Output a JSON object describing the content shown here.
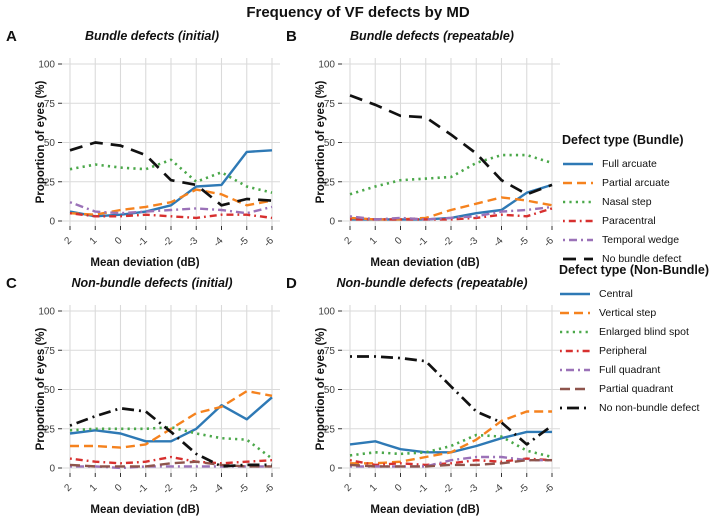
{
  "title": "Frequency of VF defects by MD",
  "background": "#ffffff",
  "styles": {
    "full_arcuate": {
      "color": "#2E79B5",
      "dash": null,
      "width": 2.4
    },
    "partial_arcuate": {
      "color": "#F5821E",
      "dash": "9 5",
      "width": 2.4
    },
    "nasal_step": {
      "color": "#4BA84A",
      "dash": "2.2 4.2",
      "width": 2.6
    },
    "paracentral": {
      "color": "#D7302F",
      "dash": "1.8 4 7 4",
      "width": 2.4
    },
    "temporal_wedge": {
      "color": "#9B72B8",
      "dash": "2 4 8 4",
      "width": 2.4
    },
    "no_bundle_defect": {
      "color": "#111111",
      "dash": "13 8",
      "width": 2.7
    },
    "central": {
      "color": "#2E79B5",
      "dash": null,
      "width": 2.4
    },
    "vertical_step": {
      "color": "#F5821E",
      "dash": "9 5",
      "width": 2.4
    },
    "enlarged_blind_spot": {
      "color": "#4BA84A",
      "dash": "2.2 4.2",
      "width": 2.6
    },
    "peripheral": {
      "color": "#D7302F",
      "dash": "1.8 4 7 4",
      "width": 2.4
    },
    "full_quadrant": {
      "color": "#9B72B8",
      "dash": "2 4 8 4",
      "width": 2.4
    },
    "partial_quadrant": {
      "color": "#8E544C",
      "dash": "10 5",
      "width": 2.4
    },
    "no_nonbundle_defect": {
      "color": "#111111",
      "dash": "2 5 12 5",
      "width": 2.7
    }
  },
  "grid_color": "#DADADA",
  "tick_text_color": "#404040",
  "legends": [
    {
      "title": "Defect type (Bundle)",
      "items": [
        {
          "label": "Full arcuate",
          "style": "full_arcuate"
        },
        {
          "label": "Partial arcuate",
          "style": "partial_arcuate"
        },
        {
          "label": "Nasal step",
          "style": "nasal_step"
        },
        {
          "label": "Paracentral",
          "style": "paracentral"
        },
        {
          "label": "Temporal wedge",
          "style": "temporal_wedge"
        },
        {
          "label": "No bundle defect",
          "style": "no_bundle_defect"
        }
      ]
    },
    {
      "title": "Defect type (Non-Bundle)",
      "items": [
        {
          "label": "Central",
          "style": "central"
        },
        {
          "label": "Vertical step",
          "style": "vertical_step"
        },
        {
          "label": "Enlarged blind spot",
          "style": "enlarged_blind_spot"
        },
        {
          "label": "Peripheral",
          "style": "peripheral"
        },
        {
          "label": "Full quadrant",
          "style": "full_quadrant"
        },
        {
          "label": "Partial quadrant",
          "style": "partial_quadrant"
        },
        {
          "label": "No non-bundle defect",
          "style": "no_nonbundle_defect"
        }
      ]
    }
  ],
  "chart_data": [
    {
      "type": "line",
      "panel": "A",
      "title": "Bundle defects (initial)",
      "xlabel": "Mean deviation (dB)",
      "ylabel": "Proportion of eyes (%)",
      "x": [
        2,
        1,
        0,
        -1,
        -2,
        -3,
        -4,
        -5,
        -6
      ],
      "x_tick_labels": [
        "2",
        "1",
        "0",
        "-1",
        "-2",
        "-3",
        "-4",
        "-5",
        "-6"
      ],
      "ylim": [
        0,
        100
      ],
      "yticks": [
        0,
        25,
        50,
        75,
        100
      ],
      "grid": true,
      "legend": "Defect type (Bundle)",
      "series": [
        {
          "name": "Full arcuate",
          "style": "full_arcuate",
          "values": [
            6,
            3,
            4,
            6,
            10,
            22,
            23,
            44,
            45
          ]
        },
        {
          "name": "Partial arcuate",
          "style": "partial_arcuate",
          "values": [
            5,
            4,
            7,
            9,
            12,
            20,
            17,
            10,
            13
          ]
        },
        {
          "name": "Nasal step",
          "style": "nasal_step",
          "values": [
            33,
            36,
            34,
            33,
            39,
            25,
            31,
            22,
            18
          ]
        },
        {
          "name": "Paracentral",
          "style": "paracentral",
          "values": [
            5,
            3,
            3,
            4,
            3,
            2,
            4,
            4,
            2
          ]
        },
        {
          "name": "Temporal wedge",
          "style": "temporal_wedge",
          "values": [
            12,
            6,
            5,
            6,
            7,
            8,
            7,
            5,
            9
          ]
        },
        {
          "name": "No bundle defect",
          "style": "no_bundle_defect",
          "values": [
            45,
            50,
            48,
            42,
            26,
            23,
            10,
            14,
            13
          ]
        }
      ]
    },
    {
      "type": "line",
      "panel": "B",
      "title": "Bundle defects (repeatable)",
      "xlabel": "Mean deviation (dB)",
      "ylabel": "Proportion of eyes (%)",
      "x": [
        2,
        1,
        0,
        -1,
        -2,
        -3,
        -4,
        -5,
        -6
      ],
      "x_tick_labels": [
        "2",
        "1",
        "0",
        "-1",
        "-2",
        "-3",
        "-4",
        "-5",
        "-6"
      ],
      "ylim": [
        0,
        100
      ],
      "yticks": [
        0,
        25,
        50,
        75,
        100
      ],
      "grid": true,
      "legend": "Defect type (Bundle)",
      "series": [
        {
          "name": "Full arcuate",
          "style": "full_arcuate",
          "values": [
            1,
            1,
            1,
            1,
            2,
            5,
            7,
            18,
            23
          ]
        },
        {
          "name": "Partial arcuate",
          "style": "partial_arcuate",
          "values": [
            2,
            1,
            1,
            2,
            7,
            11,
            15,
            13,
            10
          ]
        },
        {
          "name": "Nasal step",
          "style": "nasal_step",
          "values": [
            17,
            22,
            26,
            27,
            28,
            37,
            42,
            42,
            37
          ]
        },
        {
          "name": "Paracentral",
          "style": "paracentral",
          "values": [
            1,
            1,
            1,
            1,
            1,
            2,
            4,
            3,
            8
          ]
        },
        {
          "name": "Temporal wedge",
          "style": "temporal_wedge",
          "values": [
            3,
            1,
            2,
            1,
            2,
            3,
            6,
            7,
            9
          ]
        },
        {
          "name": "No bundle defect",
          "style": "no_bundle_defect",
          "values": [
            80,
            74,
            67,
            66,
            55,
            43,
            26,
            17,
            23
          ]
        }
      ]
    },
    {
      "type": "line",
      "panel": "C",
      "title": "Non-bundle defects (initial)",
      "xlabel": "Mean deviation (dB)",
      "ylabel": "Proportion of eyes (%)",
      "x": [
        2,
        1,
        0,
        -1,
        -2,
        -3,
        -4,
        -5,
        -6
      ],
      "x_tick_labels": [
        "2",
        "1",
        "0",
        "-1",
        "-2",
        "-3",
        "-4",
        "-5",
        "-6"
      ],
      "ylim": [
        0,
        100
      ],
      "yticks": [
        0,
        25,
        50,
        75,
        100
      ],
      "grid": true,
      "legend": "Defect type (Non-Bundle)",
      "series": [
        {
          "name": "Central",
          "style": "central",
          "values": [
            22,
            24,
            22,
            17,
            17,
            25,
            40,
            31,
            45
          ]
        },
        {
          "name": "Vertical step",
          "style": "vertical_step",
          "values": [
            14,
            14,
            13,
            15,
            25,
            35,
            39,
            49,
            46
          ]
        },
        {
          "name": "Enlarged blind spot",
          "style": "enlarged_blind_spot",
          "values": [
            24,
            25,
            25,
            25,
            26,
            22,
            19,
            18,
            6
          ]
        },
        {
          "name": "Peripheral",
          "style": "peripheral",
          "values": [
            6,
            4,
            3,
            4,
            7,
            4,
            3,
            4,
            5
          ]
        },
        {
          "name": "Full quadrant",
          "style": "full_quadrant",
          "values": [
            1,
            1,
            0,
            1,
            1,
            1,
            1,
            1,
            1
          ]
        },
        {
          "name": "Partial quadrant",
          "style": "partial_quadrant",
          "values": [
            2,
            1,
            1,
            1,
            3,
            4,
            2,
            1,
            1
          ]
        },
        {
          "name": "No non-bundle defect",
          "style": "no_nonbundle_defect",
          "values": [
            27,
            33,
            38,
            36,
            23,
            9,
            1,
            2,
            2
          ]
        }
      ]
    },
    {
      "type": "line",
      "panel": "D",
      "title": "Non-bundle defects (repeatable)",
      "xlabel": "Mean deviation (dB)",
      "ylabel": "Proportion of eyes (%)",
      "x": [
        2,
        1,
        0,
        -1,
        -2,
        -3,
        -4,
        -5,
        -6
      ],
      "x_tick_labels": [
        "2",
        "1",
        "0",
        "-1",
        "-2",
        "-3",
        "-4",
        "-5",
        "-6"
      ],
      "ylim": [
        0,
        100
      ],
      "yticks": [
        0,
        25,
        50,
        75,
        100
      ],
      "grid": true,
      "legend": "Defect type (Non-Bundle)",
      "series": [
        {
          "name": "Central",
          "style": "central",
          "values": [
            15,
            17,
            12,
            10,
            10,
            14,
            19,
            23,
            23
          ]
        },
        {
          "name": "Vertical step",
          "style": "vertical_step",
          "values": [
            3,
            3,
            4,
            7,
            10,
            18,
            30,
            36,
            36
          ]
        },
        {
          "name": "Enlarged blind spot",
          "style": "enlarged_blind_spot",
          "values": [
            8,
            10,
            9,
            10,
            14,
            21,
            20,
            11,
            7
          ]
        },
        {
          "name": "Peripheral",
          "style": "peripheral",
          "values": [
            5,
            2,
            3,
            2,
            3,
            5,
            4,
            6,
            5
          ]
        },
        {
          "name": "Full quadrant",
          "style": "full_quadrant",
          "values": [
            1,
            1,
            1,
            1,
            5,
            7,
            7,
            5,
            5
          ]
        },
        {
          "name": "Partial quadrant",
          "style": "partial_quadrant",
          "values": [
            2,
            1,
            1,
            1,
            2,
            2,
            3,
            5,
            5
          ]
        },
        {
          "name": "No non-bundle defect",
          "style": "no_nonbundle_defect",
          "values": [
            71,
            71,
            70,
            68,
            52,
            36,
            29,
            15,
            27
          ]
        }
      ]
    }
  ]
}
